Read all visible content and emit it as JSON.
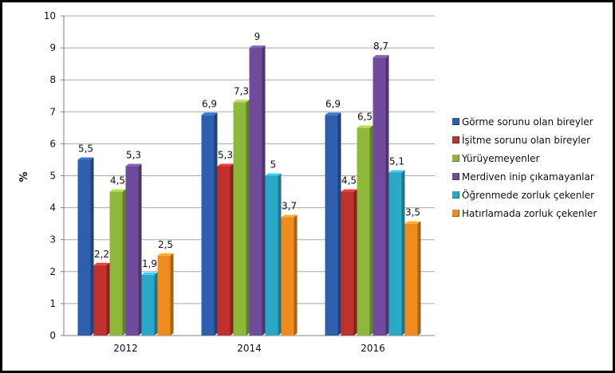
{
  "chart_data": {
    "type": "bar",
    "title": "",
    "xlabel": "",
    "ylabel": "%",
    "ylim": [
      0,
      10
    ],
    "yticks": [
      "0",
      "1",
      "2",
      "3",
      "4",
      "5",
      "6",
      "7",
      "8",
      "9",
      "10"
    ],
    "grid": true,
    "legend_position": "right",
    "categories": [
      "2012",
      "2014",
      "2016"
    ],
    "series": [
      {
        "name": "Görme sorunu olan bireyler",
        "color": "#2e5fae",
        "values": [
          5.5,
          6.9,
          6.9
        ],
        "labels": [
          "5,5",
          "6,9",
          "6,9"
        ]
      },
      {
        "name": "İşitme sorunu olan bireyler",
        "color": "#c0312d",
        "values": [
          2.2,
          5.3,
          4.5
        ],
        "labels": [
          "2,2",
          "5,3",
          "4,5"
        ]
      },
      {
        "name": "Yürüyemeyenler",
        "color": "#8db83a",
        "values": [
          4.5,
          7.3,
          6.5
        ],
        "labels": [
          "4,5",
          "7,3",
          "6,5"
        ]
      },
      {
        "name": "Merdiven inip çıkamayanlar",
        "color": "#6f4c9b",
        "values": [
          5.3,
          9,
          8.7
        ],
        "labels": [
          "5,3",
          "9",
          "8,7"
        ]
      },
      {
        "name": "Öğrenmede zorluk çekenler",
        "color": "#2aa9c6",
        "values": [
          1.9,
          5,
          5.1
        ],
        "labels": [
          "1,9",
          "5",
          "5,1"
        ]
      },
      {
        "name": "Hatırlamada zorluk çekenler",
        "color": "#f08c1e",
        "values": [
          2.5,
          3.7,
          3.5
        ],
        "labels": [
          "2,5",
          "3,7",
          "3,5"
        ]
      }
    ]
  }
}
